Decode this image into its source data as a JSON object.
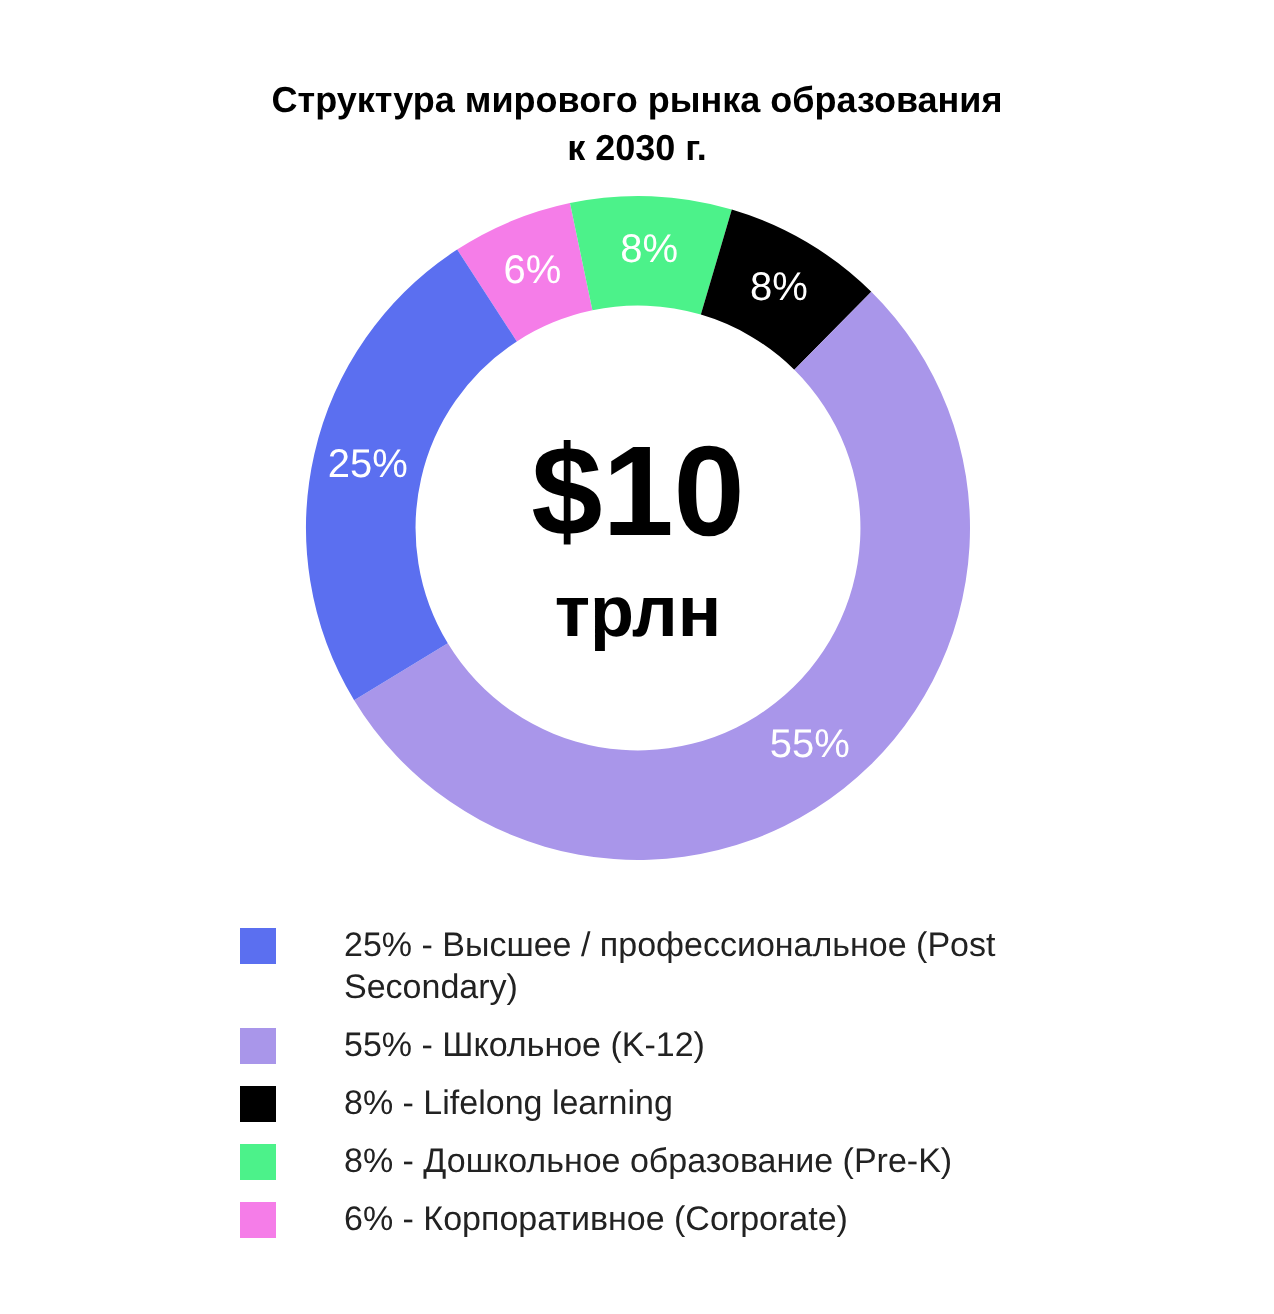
{
  "chart_data": {
    "type": "donut",
    "title": "Структура мирового рынка образования\nк 2030 г.",
    "categories": [
      "25% - Высшее / профессиональное (Post Secondary)",
      "55% - Школьное (K-12)",
      "8% - Lifelong learning",
      "8% - Дошкольное образование (Pre-K)",
      "6% - Корпоративное (Corporate)"
    ],
    "values": [
      25,
      55,
      8,
      8,
      6
    ],
    "value_labels": [
      "25%",
      "55%",
      "8%",
      "8%",
      "6%"
    ],
    "colors": [
      "#5b6ff0",
      "#a996ea",
      "#000000",
      "#4cf28a",
      "#f57de8"
    ],
    "annotations": [
      "$10",
      "трлн"
    ],
    "legend": "bottom"
  }
}
